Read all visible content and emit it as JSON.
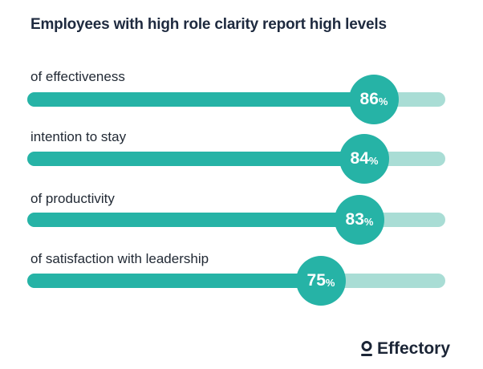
{
  "chart_data": {
    "type": "bar",
    "title": "Employees with high role clarity report high levels",
    "categories": [
      "of effectiveness",
      "intention to stay",
      "of productivity",
      "of satisfaction with leadership"
    ],
    "values": [
      86,
      84,
      83,
      75
    ],
    "unit": "%",
    "ylim": [
      0,
      100
    ],
    "colors": {
      "fill": "#26b3a6",
      "track": "#a9ddd5",
      "title": "#1e2a3f"
    }
  },
  "brand": {
    "name": "Effectory",
    "icon": "person-icon"
  }
}
